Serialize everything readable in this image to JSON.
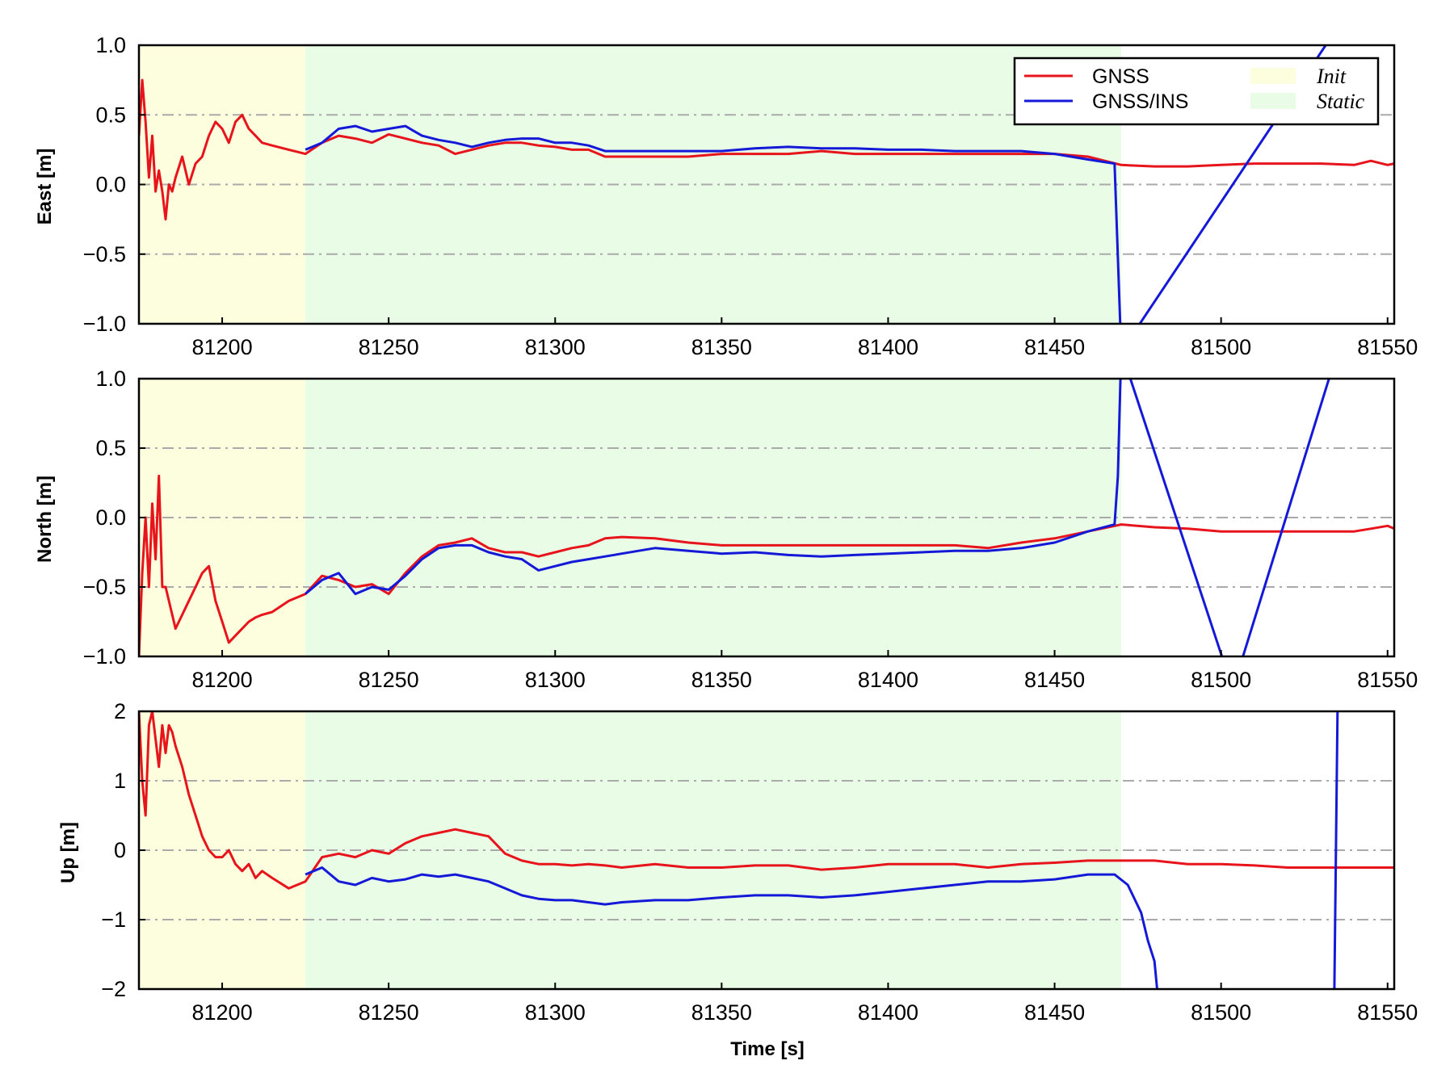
{
  "colors": {
    "gnss": "#e8141c",
    "gnss_ins": "#1419d8",
    "init_band": "#fdfedd",
    "static_band": "#e9fce6",
    "grid": "#aaaaaa"
  },
  "legend": {
    "gnss": "GNSS",
    "gnss_ins": "GNSS/INS",
    "init": "Init",
    "static": "Static"
  },
  "xlabel": "Time [s]",
  "chart_data": [
    {
      "type": "line",
      "ylabel": "East [m]",
      "xlim": [
        81175,
        81552
      ],
      "ylim": [
        -1.0,
        1.0
      ],
      "xticks": [
        "81200",
        "81250",
        "81300",
        "81350",
        "81400",
        "81450",
        "81500",
        "81550"
      ],
      "yticks": [
        "1.0",
        "0.5",
        "0.0",
        "−0.5",
        "−1.0"
      ],
      "ytick_values": [
        1.0,
        0.5,
        0.0,
        -0.5,
        -1.0
      ],
      "grid": "dash-dot horizontal",
      "legend": "top-right",
      "bands": [
        {
          "name": "Init",
          "x": [
            81175,
            81225
          ]
        },
        {
          "name": "Static",
          "x": [
            81225,
            81470
          ]
        }
      ],
      "series": [
        {
          "name": "GNSS",
          "x": [
            81175,
            81176,
            81177,
            81178,
            81179,
            81180,
            81181,
            81182,
            81183,
            81184,
            81185,
            81186,
            81188,
            81190,
            81192,
            81194,
            81196,
            81198,
            81200,
            81202,
            81204,
            81206,
            81208,
            81210,
            81212,
            81215,
            81220,
            81225,
            81230,
            81235,
            81240,
            81245,
            81250,
            81255,
            81260,
            81265,
            81270,
            81275,
            81280,
            81285,
            81290,
            81295,
            81300,
            81305,
            81310,
            81315,
            81320,
            81330,
            81340,
            81350,
            81360,
            81370,
            81380,
            81390,
            81400,
            81410,
            81420,
            81430,
            81440,
            81450,
            81460,
            81470,
            81480,
            81490,
            81500,
            81510,
            81520,
            81530,
            81540,
            81545,
            81550,
            81552
          ],
          "y": [
            0.35,
            0.75,
            0.45,
            0.05,
            0.35,
            -0.05,
            0.1,
            -0.05,
            -0.25,
            0.0,
            -0.05,
            0.05,
            0.2,
            0.0,
            0.15,
            0.2,
            0.35,
            0.45,
            0.4,
            0.3,
            0.45,
            0.5,
            0.4,
            0.35,
            0.3,
            0.28,
            0.25,
            0.22,
            0.3,
            0.35,
            0.33,
            0.3,
            0.36,
            0.33,
            0.3,
            0.28,
            0.22,
            0.25,
            0.28,
            0.3,
            0.3,
            0.28,
            0.27,
            0.25,
            0.25,
            0.2,
            0.2,
            0.2,
            0.2,
            0.22,
            0.22,
            0.22,
            0.24,
            0.22,
            0.22,
            0.22,
            0.22,
            0.22,
            0.22,
            0.22,
            0.2,
            0.14,
            0.13,
            0.13,
            0.14,
            0.15,
            0.15,
            0.15,
            0.14,
            0.17,
            0.14,
            0.15
          ]
        },
        {
          "name": "GNSS/INS",
          "x": [
            81225,
            81230,
            81235,
            81240,
            81245,
            81250,
            81255,
            81260,
            81265,
            81270,
            81275,
            81280,
            81285,
            81290,
            81295,
            81300,
            81305,
            81310,
            81315,
            81320,
            81330,
            81340,
            81350,
            81360,
            81370,
            81380,
            81390,
            81400,
            81410,
            81420,
            81430,
            81440,
            81450,
            81460,
            81468,
            81470,
            81537,
            81540
          ],
          "y": [
            0.25,
            0.3,
            0.4,
            0.42,
            0.38,
            0.4,
            0.42,
            0.35,
            0.32,
            0.3,
            0.27,
            0.3,
            0.32,
            0.33,
            0.33,
            0.3,
            0.3,
            0.28,
            0.24,
            0.24,
            0.24,
            0.24,
            0.24,
            0.26,
            0.27,
            0.26,
            0.26,
            0.25,
            0.25,
            0.24,
            0.24,
            0.24,
            0.22,
            0.18,
            0.15,
            -1.2,
            1.2,
            1.2
          ]
        }
      ]
    },
    {
      "type": "line",
      "ylabel": "North [m]",
      "xlim": [
        81175,
        81552
      ],
      "ylim": [
        -1.0,
        1.0
      ],
      "xticks": [
        "81200",
        "81250",
        "81300",
        "81350",
        "81400",
        "81450",
        "81500",
        "81550"
      ],
      "yticks": [
        "1.0",
        "0.5",
        "0.0",
        "−0.5",
        "−1.0"
      ],
      "ytick_values": [
        1.0,
        0.5,
        0.0,
        -0.5,
        -1.0
      ],
      "grid": "dash-dot horizontal",
      "bands": [
        {
          "name": "Init",
          "x": [
            81175,
            81225
          ]
        },
        {
          "name": "Static",
          "x": [
            81225,
            81470
          ]
        }
      ],
      "series": [
        {
          "name": "GNSS",
          "x": [
            81175,
            81176,
            81177,
            81178,
            81179,
            81180,
            81181,
            81182,
            81183,
            81184,
            81185,
            81186,
            81188,
            81190,
            81192,
            81194,
            81196,
            81198,
            81200,
            81202,
            81204,
            81206,
            81208,
            81210,
            81212,
            81215,
            81220,
            81225,
            81230,
            81235,
            81240,
            81245,
            81250,
            81255,
            81260,
            81265,
            81270,
            81275,
            81280,
            81285,
            81290,
            81295,
            81300,
            81305,
            81310,
            81315,
            81320,
            81330,
            81340,
            81350,
            81360,
            81370,
            81380,
            81390,
            81400,
            81410,
            81420,
            81430,
            81440,
            81450,
            81460,
            81470,
            81480,
            81490,
            81500,
            81510,
            81520,
            81530,
            81540,
            81545,
            81550,
            81552
          ],
          "y": [
            -1.0,
            -0.4,
            0.0,
            -0.5,
            0.1,
            -0.3,
            0.3,
            -0.5,
            -0.5,
            -0.6,
            -0.7,
            -0.8,
            -0.7,
            -0.6,
            -0.5,
            -0.4,
            -0.35,
            -0.6,
            -0.75,
            -0.9,
            -0.85,
            -0.8,
            -0.75,
            -0.72,
            -0.7,
            -0.68,
            -0.6,
            -0.55,
            -0.42,
            -0.45,
            -0.5,
            -0.48,
            -0.55,
            -0.4,
            -0.28,
            -0.2,
            -0.18,
            -0.15,
            -0.22,
            -0.25,
            -0.25,
            -0.28,
            -0.25,
            -0.22,
            -0.2,
            -0.15,
            -0.14,
            -0.15,
            -0.18,
            -0.2,
            -0.2,
            -0.2,
            -0.2,
            -0.2,
            -0.2,
            -0.2,
            -0.2,
            -0.22,
            -0.18,
            -0.15,
            -0.1,
            -0.05,
            -0.07,
            -0.08,
            -0.1,
            -0.1,
            -0.1,
            -0.1,
            -0.1,
            -0.08,
            -0.06,
            -0.08
          ]
        },
        {
          "name": "GNSS/INS",
          "x": [
            81225,
            81230,
            81235,
            81240,
            81245,
            81250,
            81255,
            81260,
            81265,
            81270,
            81275,
            81280,
            81285,
            81290,
            81295,
            81300,
            81305,
            81310,
            81315,
            81320,
            81330,
            81340,
            81350,
            81360,
            81370,
            81380,
            81390,
            81400,
            81410,
            81420,
            81430,
            81440,
            81450,
            81460,
            81468,
            81469,
            81470,
            81503,
            81504,
            81535,
            81536
          ],
          "y": [
            -0.55,
            -0.45,
            -0.4,
            -0.55,
            -0.5,
            -0.52,
            -0.42,
            -0.3,
            -0.22,
            -0.2,
            -0.2,
            -0.25,
            -0.28,
            -0.3,
            -0.38,
            -0.35,
            -0.32,
            -0.3,
            -0.28,
            -0.26,
            -0.22,
            -0.24,
            -0.26,
            -0.25,
            -0.27,
            -0.28,
            -0.27,
            -0.26,
            -0.25,
            -0.24,
            -0.24,
            -0.22,
            -0.18,
            -0.1,
            -0.05,
            0.3,
            1.2,
            -1.2,
            -1.2,
            1.2,
            1.2
          ]
        }
      ]
    },
    {
      "type": "line",
      "ylabel": "Up [m]",
      "xlim": [
        81175,
        81552
      ],
      "ylim": [
        -2,
        2
      ],
      "xticks": [
        "81200",
        "81250",
        "81300",
        "81350",
        "81400",
        "81450",
        "81500",
        "81550"
      ],
      "yticks": [
        "2",
        "1",
        "0",
        "−1",
        "−2"
      ],
      "ytick_values": [
        2,
        1,
        0,
        -1,
        -2
      ],
      "grid": "dash-dot horizontal",
      "bands": [
        {
          "name": "Init",
          "x": [
            81175,
            81225
          ]
        },
        {
          "name": "Static",
          "x": [
            81225,
            81470
          ]
        }
      ],
      "series": [
        {
          "name": "GNSS",
          "x": [
            81175,
            81176,
            81177,
            81178,
            81179,
            81180,
            81181,
            81182,
            81183,
            81184,
            81185,
            81186,
            81188,
            81190,
            81192,
            81194,
            81196,
            81198,
            81200,
            81202,
            81204,
            81206,
            81208,
            81210,
            81212,
            81215,
            81220,
            81225,
            81230,
            81235,
            81240,
            81245,
            81250,
            81255,
            81260,
            81265,
            81270,
            81275,
            81280,
            81285,
            81290,
            81295,
            81300,
            81305,
            81310,
            81315,
            81320,
            81330,
            81340,
            81350,
            81360,
            81370,
            81380,
            81390,
            81400,
            81410,
            81420,
            81430,
            81440,
            81450,
            81460,
            81470,
            81480,
            81490,
            81500,
            81510,
            81520,
            81530,
            81540,
            81545,
            81550,
            81552
          ],
          "y": [
            2.0,
            1.0,
            0.5,
            1.8,
            2.0,
            1.6,
            1.2,
            1.8,
            1.4,
            1.8,
            1.7,
            1.5,
            1.2,
            0.8,
            0.5,
            0.2,
            0.0,
            -0.1,
            -0.1,
            0.0,
            -0.2,
            -0.3,
            -0.2,
            -0.4,
            -0.3,
            -0.4,
            -0.55,
            -0.45,
            -0.1,
            -0.05,
            -0.1,
            0.0,
            -0.05,
            0.1,
            0.2,
            0.25,
            0.3,
            0.25,
            0.2,
            -0.05,
            -0.15,
            -0.2,
            -0.2,
            -0.22,
            -0.2,
            -0.22,
            -0.25,
            -0.2,
            -0.25,
            -0.25,
            -0.22,
            -0.22,
            -0.28,
            -0.25,
            -0.2,
            -0.2,
            -0.2,
            -0.25,
            -0.2,
            -0.18,
            -0.15,
            -0.15,
            -0.15,
            -0.2,
            -0.2,
            -0.22,
            -0.25,
            -0.25,
            -0.25,
            -0.25,
            -0.25,
            -0.25
          ]
        },
        {
          "name": "GNSS/INS",
          "x": [
            81225,
            81230,
            81235,
            81240,
            81245,
            81250,
            81255,
            81260,
            81265,
            81270,
            81275,
            81280,
            81285,
            81290,
            81295,
            81300,
            81305,
            81310,
            81315,
            81320,
            81330,
            81340,
            81350,
            81360,
            81370,
            81380,
            81390,
            81400,
            81410,
            81420,
            81430,
            81440,
            81450,
            81460,
            81468,
            81472,
            81476,
            81478,
            81480,
            81481,
            81534,
            81535
          ],
          "y": [
            -0.35,
            -0.25,
            -0.45,
            -0.5,
            -0.4,
            -0.45,
            -0.42,
            -0.35,
            -0.38,
            -0.35,
            -0.4,
            -0.45,
            -0.55,
            -0.65,
            -0.7,
            -0.72,
            -0.72,
            -0.75,
            -0.78,
            -0.75,
            -0.72,
            -0.72,
            -0.68,
            -0.65,
            -0.65,
            -0.68,
            -0.65,
            -0.6,
            -0.55,
            -0.5,
            -0.45,
            -0.45,
            -0.42,
            -0.35,
            -0.35,
            -0.5,
            -0.9,
            -1.3,
            -1.6,
            -2.1,
            -2.1,
            2.1
          ]
        }
      ]
    }
  ]
}
